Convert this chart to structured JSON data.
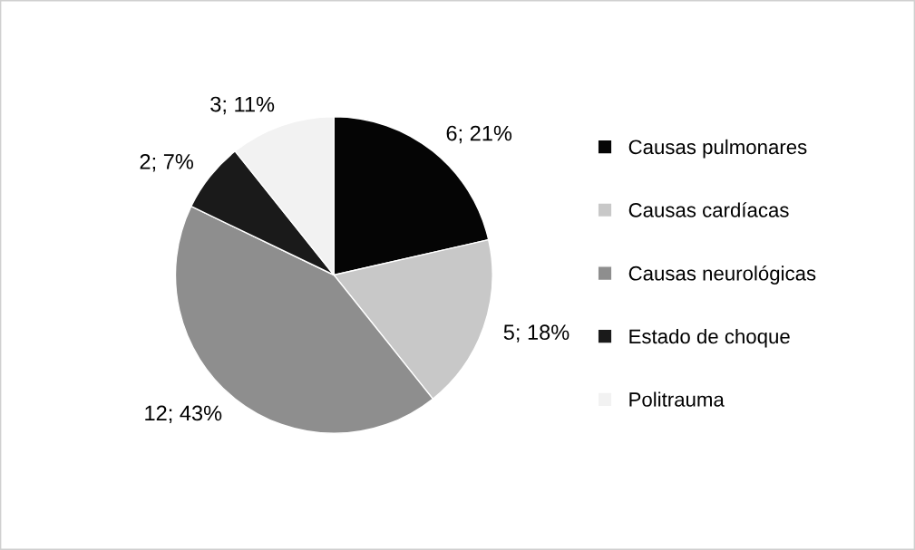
{
  "chart_data": {
    "type": "pie",
    "categories": [
      "Causas pulmonares",
      "Causas cardíacas",
      "Causas neurológicas",
      "Estado de choque",
      "Politrauma"
    ],
    "values": [
      6,
      5,
      12,
      2,
      3
    ],
    "colors": [
      "#050505",
      "#c8c8c8",
      "#8e8e8e",
      "#1a1a1a",
      "#f2f2f2"
    ],
    "value_labels": [
      "6; 21%",
      "5; 18%",
      "12; 43%",
      "2; 7%",
      "3; 11%"
    ],
    "legend": "right"
  }
}
